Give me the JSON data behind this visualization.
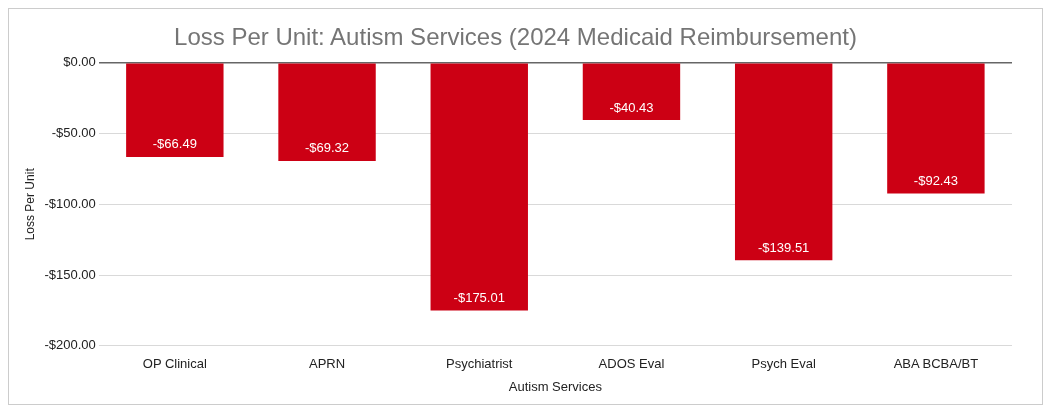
{
  "chart_data": {
    "type": "bar",
    "title": "Loss Per Unit: Autism Services (2024 Medicaid Reimbursement)",
    "xlabel": "Autism Services",
    "ylabel": "Loss Per Unit",
    "categories": [
      "OP Clinical",
      "APRN",
      "Psychiatrist",
      "ADOS Eval",
      "Psych Eval",
      "ABA BCBA/BT"
    ],
    "values": [
      -66.49,
      -69.32,
      -175.01,
      -40.43,
      -139.51,
      -92.43
    ],
    "value_labels": [
      "-$66.49",
      "-$69.32",
      "-$175.01",
      "-$40.43",
      "-$139.51",
      "-$92.43"
    ],
    "color": "#cc0014",
    "ylim": [
      -200,
      0
    ],
    "yticks": [
      {
        "value": -200,
        "label": "-$200.00"
      },
      {
        "value": -150,
        "label": "-$150.00"
      },
      {
        "value": -100,
        "label": "-$100.00"
      },
      {
        "value": -50,
        "label": "-$50.00"
      },
      {
        "value": 0,
        "label": "$0.00"
      }
    ],
    "grid": "y"
  }
}
